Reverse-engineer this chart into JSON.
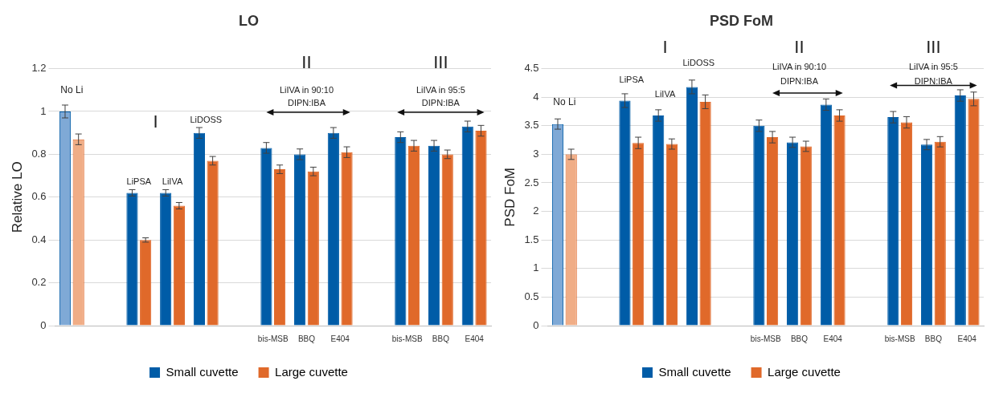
{
  "chart_data": [
    {
      "type": "bar",
      "title": "LO",
      "ylabel": "Relative LO",
      "categories": [
        null,
        null,
        null,
        null,
        null,
        null,
        "bis-MSB",
        "BBQ",
        "E404",
        null,
        "bis-MSB",
        "BBQ",
        "E404"
      ],
      "series": [
        {
          "name": "Small cuvette",
          "color": "#005ca7",
          "colors": [
            "#7fa9d6",
            "#005ca7",
            "#005ca7",
            "#005ca7",
            "#005ca7",
            "#005ca7",
            "#005ca7",
            "#005ca7",
            "#005ca7",
            "#005ca7",
            "#005ca7",
            "#005ca7",
            "#005ca7"
          ],
          "values": [
            1.0,
            null,
            0.62,
            0.62,
            0.9,
            null,
            0.83,
            0.8,
            0.9,
            null,
            0.88,
            0.84,
            0.93
          ],
          "errors": [
            0.03,
            null,
            0.015,
            0.015,
            0.025,
            null,
            0.025,
            0.025,
            0.025,
            null,
            0.025,
            0.025,
            0.025
          ]
        },
        {
          "name": "Large cuvette",
          "color": "#e0692a",
          "colors": [
            "#f0ad86",
            "#e0692a",
            "#e0692a",
            "#e0692a",
            "#e0692a",
            "#e0692a",
            "#e0692a",
            "#e0692a",
            "#e0692a",
            "#e0692a",
            "#e0692a",
            "#e0692a",
            "#e0692a"
          ],
          "values": [
            0.87,
            null,
            0.4,
            0.56,
            0.77,
            null,
            0.73,
            0.72,
            0.81,
            null,
            0.84,
            0.8,
            0.91
          ],
          "errors": [
            0.025,
            null,
            0.01,
            0.015,
            0.02,
            null,
            0.02,
            0.02,
            0.025,
            null,
            0.025,
            0.02,
            0.025
          ]
        }
      ],
      "ylim": [
        0,
        1.2
      ],
      "yticks": [
        0,
        0.2,
        0.4,
        0.6,
        0.8,
        1,
        1.2
      ],
      "grid": "y",
      "legend": "bottom",
      "annotations": [
        "No Li",
        "I",
        "LiPSA",
        "LiIVA",
        "LiDOSS",
        "II",
        "LiIVA in 90:10",
        "DIPN:IBA",
        "III",
        "LiIVA in 95:5",
        "DIPN:IBA"
      ]
    },
    {
      "type": "bar",
      "title": "PSD FoM",
      "ylabel": "PSD FoM",
      "categories": [
        null,
        null,
        null,
        null,
        null,
        null,
        "bis-MSB",
        "BBQ",
        "E404",
        null,
        "bis-MSB",
        "BBQ",
        "E404"
      ],
      "series": [
        {
          "name": "Small cuvette",
          "color": "#005ca7",
          "colors": [
            "#7fa9d6",
            "#005ca7",
            "#005ca7",
            "#005ca7",
            "#005ca7",
            "#005ca7",
            "#005ca7",
            "#005ca7",
            "#005ca7",
            "#005ca7",
            "#005ca7",
            "#005ca7",
            "#005ca7"
          ],
          "values": [
            3.53,
            null,
            3.94,
            3.68,
            4.18,
            null,
            3.5,
            3.21,
            3.87,
            null,
            3.65,
            3.17,
            4.03
          ],
          "errors": [
            0.09,
            null,
            0.12,
            0.1,
            0.12,
            null,
            0.1,
            0.09,
            0.1,
            null,
            0.1,
            0.09,
            0.1
          ]
        },
        {
          "name": "Large cuvette",
          "color": "#e0692a",
          "colors": [
            "#f0ad86",
            "#e0692a",
            "#e0692a",
            "#e0692a",
            "#e0692a",
            "#e0692a",
            "#e0692a",
            "#e0692a",
            "#e0692a",
            "#e0692a",
            "#e0692a",
            "#e0692a",
            "#e0692a"
          ],
          "values": [
            3.0,
            null,
            3.2,
            3.18,
            3.92,
            null,
            3.3,
            3.14,
            3.68,
            null,
            3.56,
            3.22,
            3.97
          ],
          "errors": [
            0.09,
            null,
            0.1,
            0.09,
            0.12,
            null,
            0.1,
            0.09,
            0.1,
            null,
            0.1,
            0.09,
            0.12
          ]
        }
      ],
      "ylim": [
        0,
        4.5
      ],
      "yticks": [
        0,
        0.5,
        1,
        1.5,
        2,
        2.5,
        3,
        3.5,
        4,
        4.5
      ],
      "grid": "y",
      "legend": "bottom",
      "annotations": [
        "No Li",
        "I",
        "LiPSA",
        "LiIVA",
        "LiDOSS",
        "II",
        "LiIVA in 90:10",
        "DIPN:IBA",
        "III",
        "LiIVA in 95:5",
        "DIPN:IBA"
      ]
    }
  ]
}
